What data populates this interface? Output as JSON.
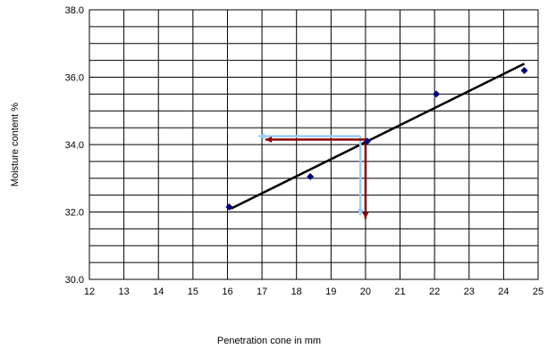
{
  "chart_data": {
    "type": "scatter",
    "title": "",
    "xlabel": "Penetration cone in mm",
    "ylabel": "Moisture content %",
    "xlim": [
      12,
      25
    ],
    "ylim": [
      30.0,
      38.0
    ],
    "x_ticks": [
      "12",
      "13",
      "14",
      "15",
      "16",
      "17",
      "18",
      "19",
      "20",
      "21",
      "22",
      "23",
      "24",
      "25"
    ],
    "y_ticks": [
      "30.0",
      "32.0",
      "34.0",
      "36.0",
      "38.0"
    ],
    "grid": true,
    "legend": "none",
    "series": [
      {
        "marker": "diamond",
        "color": "#00007f",
        "x": [
          16.05,
          18.4,
          20.05,
          22.05,
          24.6
        ],
        "y": [
          32.15,
          33.05,
          34.1,
          35.5,
          36.2
        ]
      }
    ],
    "trendline": {
      "x": [
        16.1,
        24.6
      ],
      "y": [
        32.1,
        36.4
      ],
      "color": "#000000"
    },
    "annotations": {
      "light_blue_arrows": {
        "color": "#99ccff",
        "vertical": {
          "x": 19.85,
          "y_from": 34.25,
          "y_to": 31.9
        },
        "horizontal": {
          "y": 34.25,
          "x_from": 19.85,
          "x_to": 16.9
        }
      },
      "dark_red_arrows": {
        "color": "#8b0000",
        "vertical": {
          "x": 20.0,
          "y_from": 34.15,
          "y_to": 31.8
        },
        "horizontal": {
          "y": 34.15,
          "x_from": 20.0,
          "x_to": 17.1
        }
      }
    }
  }
}
